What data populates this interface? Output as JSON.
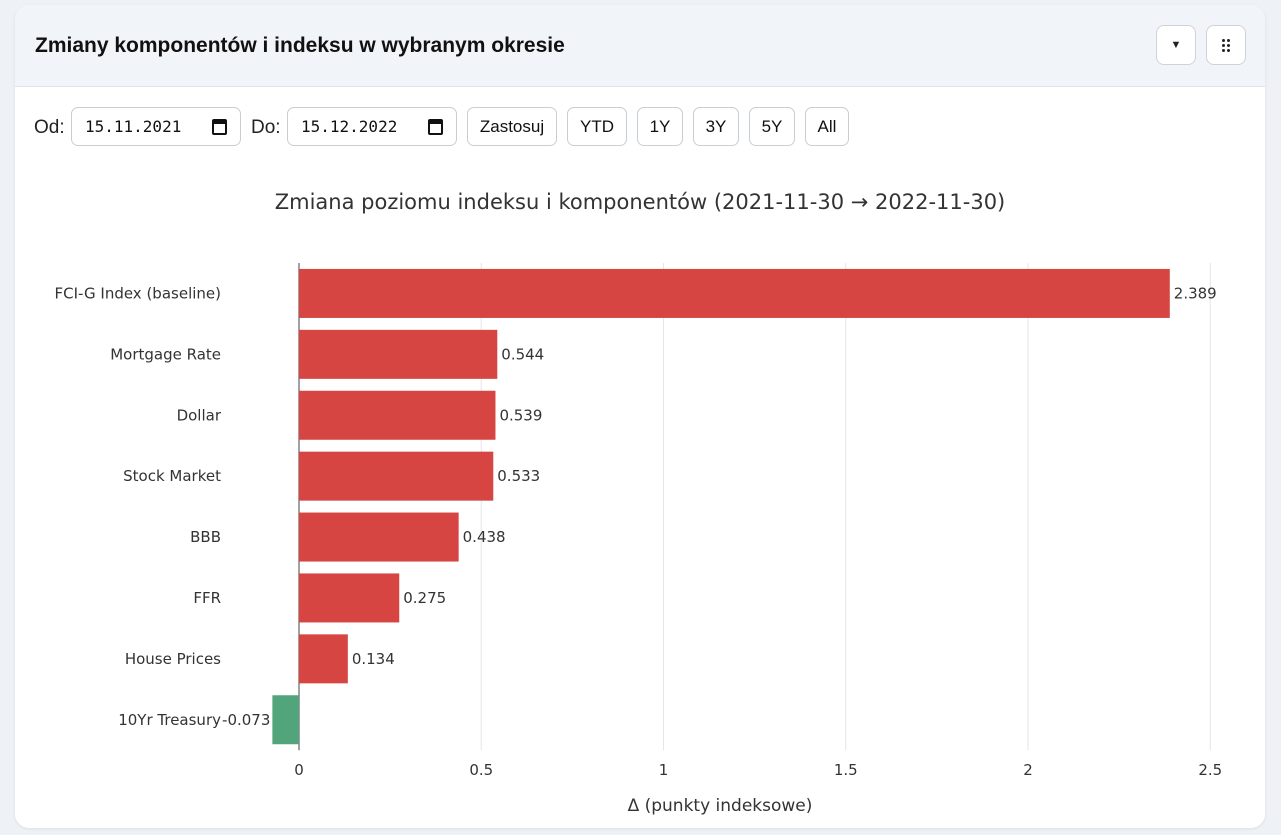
{
  "header": {
    "title": "Zmiany komponentów i indeksu w wybranym okresie",
    "dropdown_icon": "caret-down-icon",
    "menu_icon": "grid-dots-icon"
  },
  "controls": {
    "from_label": "Od:",
    "from_value": "15.11.2021",
    "to_label": "Do:",
    "to_value": "15.12.2022",
    "apply_label": "Zastosuj",
    "presets": [
      "YTD",
      "1Y",
      "3Y",
      "5Y",
      "All"
    ]
  },
  "colors": {
    "positive": "#d64541",
    "negative": "#52a57a"
  },
  "chart_data": {
    "type": "bar",
    "orientation": "horizontal",
    "title": "Zmiana poziomu indeksu i komponentów (2021-11-30 → 2022-11-30)",
    "xlabel": "Δ (punkty indeksowe)",
    "ylabel": "",
    "categories": [
      "FCI-G Index (baseline)",
      "Mortgage Rate",
      "Dollar",
      "Stock Market",
      "BBB",
      "FFR",
      "House Prices",
      "10Yr Treasury"
    ],
    "values": [
      2.389,
      0.544,
      0.539,
      0.533,
      0.438,
      0.275,
      0.134,
      -0.073
    ],
    "value_labels": [
      "2.389",
      "0.544",
      "0.539",
      "0.533",
      "0.438",
      "0.275",
      "0.134",
      "-0.073"
    ],
    "xlim": [
      -0.08,
      2.55
    ],
    "xticks": [
      0,
      0.5,
      1,
      1.5,
      2,
      2.5
    ],
    "xtick_labels": [
      "0",
      "0.5",
      "1",
      "1.5",
      "2",
      "2.5"
    ],
    "grid": true
  }
}
